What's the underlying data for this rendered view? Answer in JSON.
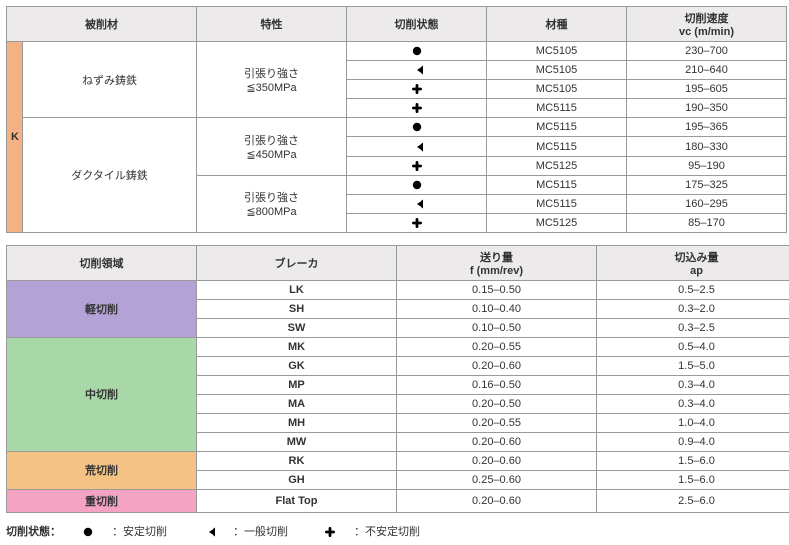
{
  "table1": {
    "headers": {
      "workpiece": "被削材",
      "prop": "特性",
      "state": "切削状態",
      "grade": "材種",
      "speed_l1": "切削速度",
      "speed_l2": "vc (m/min)"
    },
    "group_k": "K",
    "materials": [
      {
        "name": "ねずみ鋳鉄",
        "props": [
          {
            "label_l1": "引張り強さ",
            "label_l2": "≦350MPa",
            "rows": [
              {
                "state": "stable",
                "grade": "MC5105",
                "speed": "230–700"
              },
              {
                "state": "general",
                "grade": "MC5105",
                "speed": "210–640"
              },
              {
                "state": "unstable",
                "grade": "MC5105",
                "speed": "195–605"
              },
              {
                "state": "unstable",
                "grade": "MC5115",
                "speed": "190–350"
              }
            ]
          }
        ]
      },
      {
        "name": "ダクタイル鋳鉄",
        "props": [
          {
            "label_l1": "引張り強さ",
            "label_l2": "≦450MPa",
            "rows": [
              {
                "state": "stable",
                "grade": "MC5115",
                "speed": "195–365"
              },
              {
                "state": "general",
                "grade": "MC5115",
                "speed": "180–330"
              },
              {
                "state": "unstable",
                "grade": "MC5125",
                "speed": "95–190"
              }
            ]
          },
          {
            "label_l1": "引張り強さ",
            "label_l2": "≦800MPa",
            "rows": [
              {
                "state": "stable",
                "grade": "MC5115",
                "speed": "175–325"
              },
              {
                "state": "general",
                "grade": "MC5115",
                "speed": "160–295"
              },
              {
                "state": "unstable",
                "grade": "MC5125",
                "speed": "85–170"
              }
            ]
          }
        ]
      }
    ]
  },
  "table2": {
    "headers": {
      "region": "切削領域",
      "breaker": "ブレーカ",
      "feed_l1": "送り量",
      "feed_l2": "f (mm/rev)",
      "depth_l1": "切込み量",
      "depth_l2": "ap"
    },
    "groups": [
      {
        "name": "軽切削",
        "color_class": "cat-light",
        "rows": [
          {
            "breaker": "LK",
            "feed": "0.15–0.50",
            "depth": "0.5–2.5"
          },
          {
            "breaker": "SH",
            "feed": "0.10–0.40",
            "depth": "0.3–2.0"
          },
          {
            "breaker": "SW",
            "feed": "0.10–0.50",
            "depth": "0.3–2.5"
          }
        ]
      },
      {
        "name": "中切削",
        "color_class": "cat-med",
        "rows": [
          {
            "breaker": "MK",
            "feed": "0.20–0.55",
            "depth": "0.5–4.0"
          },
          {
            "breaker": "GK",
            "feed": "0.20–0.60",
            "depth": "1.5–5.0"
          },
          {
            "breaker": "MP",
            "feed": "0.16–0.50",
            "depth": "0.3–4.0"
          },
          {
            "breaker": "MA",
            "feed": "0.20–0.50",
            "depth": "0.3–4.0"
          },
          {
            "breaker": "MH",
            "feed": "0.20–0.55",
            "depth": "1.0–4.0"
          },
          {
            "breaker": "MW",
            "feed": "0.20–0.60",
            "depth": "0.9–4.0"
          }
        ]
      },
      {
        "name": "荒切削",
        "color_class": "cat-rough",
        "rows": [
          {
            "breaker": "RK",
            "feed": "0.20–0.60",
            "depth": "1.5–6.0"
          },
          {
            "breaker": "GH",
            "feed": "0.25–0.60",
            "depth": "1.5–6.0"
          }
        ]
      },
      {
        "name": "重切削",
        "color_class": "cat-heavy",
        "rows": [
          {
            "breaker": "Flat Top",
            "feed": "0.20–0.60",
            "depth": "2.5–6.0"
          }
        ]
      }
    ]
  },
  "legend": {
    "title": "切削状態：",
    "items": [
      {
        "icon": "stable",
        "label": "：安定切削"
      },
      {
        "icon": "general",
        "label": "：一般切削"
      },
      {
        "icon": "unstable",
        "label": "：不安定切削"
      }
    ]
  },
  "icons": {
    "stable": "circle",
    "general": "pac",
    "unstable": "cross"
  },
  "colors": {
    "border": "#9a9a9a",
    "header_bg": "#eceaea",
    "k_bg": "#f4b183",
    "cat_light": "#b3a2d6",
    "cat_med": "#a8d8a8",
    "cat_rough": "#f4c384",
    "cat_heavy": "#f4a3c3",
    "icon": "#000000"
  }
}
